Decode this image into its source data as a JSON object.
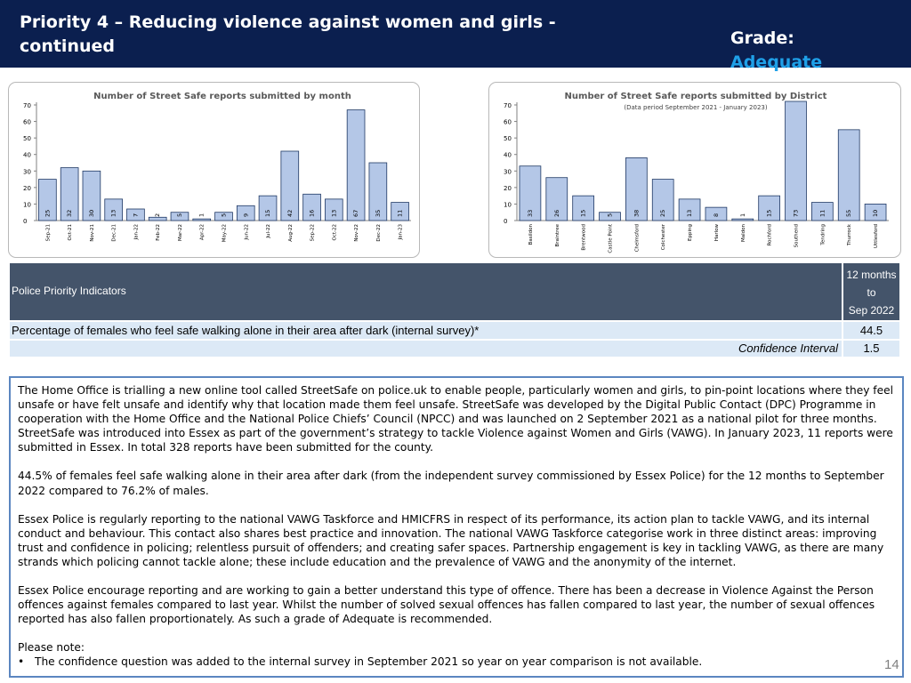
{
  "header": {
    "title": "Priority 4 – Reducing violence against women and girls - continued",
    "grade_label": "Grade:",
    "grade_value": "Adequate"
  },
  "colors": {
    "header_bg": "#0b1f4f",
    "grade_accent": "#1fa0e8",
    "bar_fill": "#b4c7e7",
    "bar_stroke": "#1f3864",
    "table_header_bg": "#44546a",
    "table_row_bg": "#dce9f6",
    "panel_border": "#5b86c0"
  },
  "chart_data": [
    {
      "type": "bar",
      "title": "Number of Street Safe reports submitted by month",
      "subtitle": "",
      "categories": [
        "Sep-21",
        "Oct-21",
        "Nov-21",
        "Dec-21",
        "Jan-22",
        "Feb-22",
        "Mar-22",
        "Apr-22",
        "May-22",
        "Jun-22",
        "Jul-22",
        "Aug-22",
        "Sep-22",
        "Oct-22",
        "Nov-22",
        "Dec-22",
        "Jan-23"
      ],
      "values": [
        25,
        32,
        30,
        13,
        7,
        2,
        5,
        1,
        5,
        9,
        15,
        42,
        16,
        13,
        67,
        35,
        11
      ],
      "ylim": [
        0,
        70
      ],
      "yticks": [
        0,
        10,
        20,
        30,
        40,
        50,
        60,
        70
      ],
      "xlabel": "",
      "ylabel": "",
      "grid": false,
      "legend": "none",
      "data_labels": true
    },
    {
      "type": "bar",
      "title": "Number of Street Safe reports submitted by District",
      "subtitle": "(Data period September 2021 - January 2023)",
      "categories": [
        "Basildon",
        "Braintree",
        "Brentwood",
        "Castle Point",
        "Chelmsford",
        "Colchester",
        "Epping",
        "Harlow",
        "Maldon",
        "Rochford",
        "Southend",
        "Tendring",
        "Thurrock",
        "Uttlesford"
      ],
      "values": [
        33,
        26,
        15,
        5,
        38,
        25,
        13,
        8,
        1,
        15,
        73,
        11,
        55,
        10
      ],
      "ylim": [
        0,
        70
      ],
      "yticks": [
        0,
        10,
        20,
        30,
        40,
        50,
        60,
        70
      ],
      "xlabel": "",
      "ylabel": "",
      "grid": false,
      "legend": "none",
      "data_labels": true
    }
  ],
  "table": {
    "header_label": "Police Priority Indicators",
    "period_lines": [
      "12 months",
      "to",
      "Sep 2022"
    ],
    "row_indicator_label": "Percentage of females who feel safe walking alone in their area after dark (internal survey)*",
    "row_indicator_value": "44.5",
    "row_ci_label": "Confidence Interval",
    "row_ci_value": "1.5"
  },
  "narrative": {
    "p1": "The Home Office is trialling a new online tool called StreetSafe on police.uk to enable people, particularly women and girls, to pin-point locations where they feel unsafe or have felt unsafe and identify why that location made them feel unsafe. StreetSafe was developed by the Digital Public Contact (DPC) Programme in cooperation with the Home Office and the National Police Chiefs’ Council (NPCC) and was launched on 2 September 2021 as a national pilot for three months. StreetSafe was introduced into Essex as part of the government’s strategy to tackle Violence against Women and Girls (VAWG). In January 2023, 11 reports were submitted in Essex. In total 328 reports have been submitted for the county.",
    "p2": "44.5% of females feel safe walking alone in their area after dark (from the independent survey commissioned by Essex Police) for the 12 months to September 2022 compared to 76.2% of males.",
    "p3": "Essex Police is regularly reporting to the national VAWG Taskforce and HMICFRS in respect of its performance, its action plan to tackle VAWG, and its internal conduct and behaviour. This contact also shares best practice and innovation. The national VAWG Taskforce categorise work in three distinct areas: improving trust and confidence in policing; relentless pursuit of offenders; and creating safer spaces. Partnership engagement is key in tackling VAWG, as there are many strands which policing cannot tackle alone; these include education and the prevalence of VAWG and the anonymity of the internet.",
    "p4": "Essex Police encourage reporting and are working to gain a better understand this type of offence. There has been a decrease in Violence Against the Person offences against females compared to last year. Whilst the number of solved sexual offences has fallen compared to last year, the number of sexual offences reported has also fallen proportionately. As such a grade of Adequate is recommended.",
    "note_title": "Please note:",
    "note_bullet": "The confidence question was added to the internal survey in September 2021 so year on year comparison is not available."
  },
  "page_number": "14"
}
